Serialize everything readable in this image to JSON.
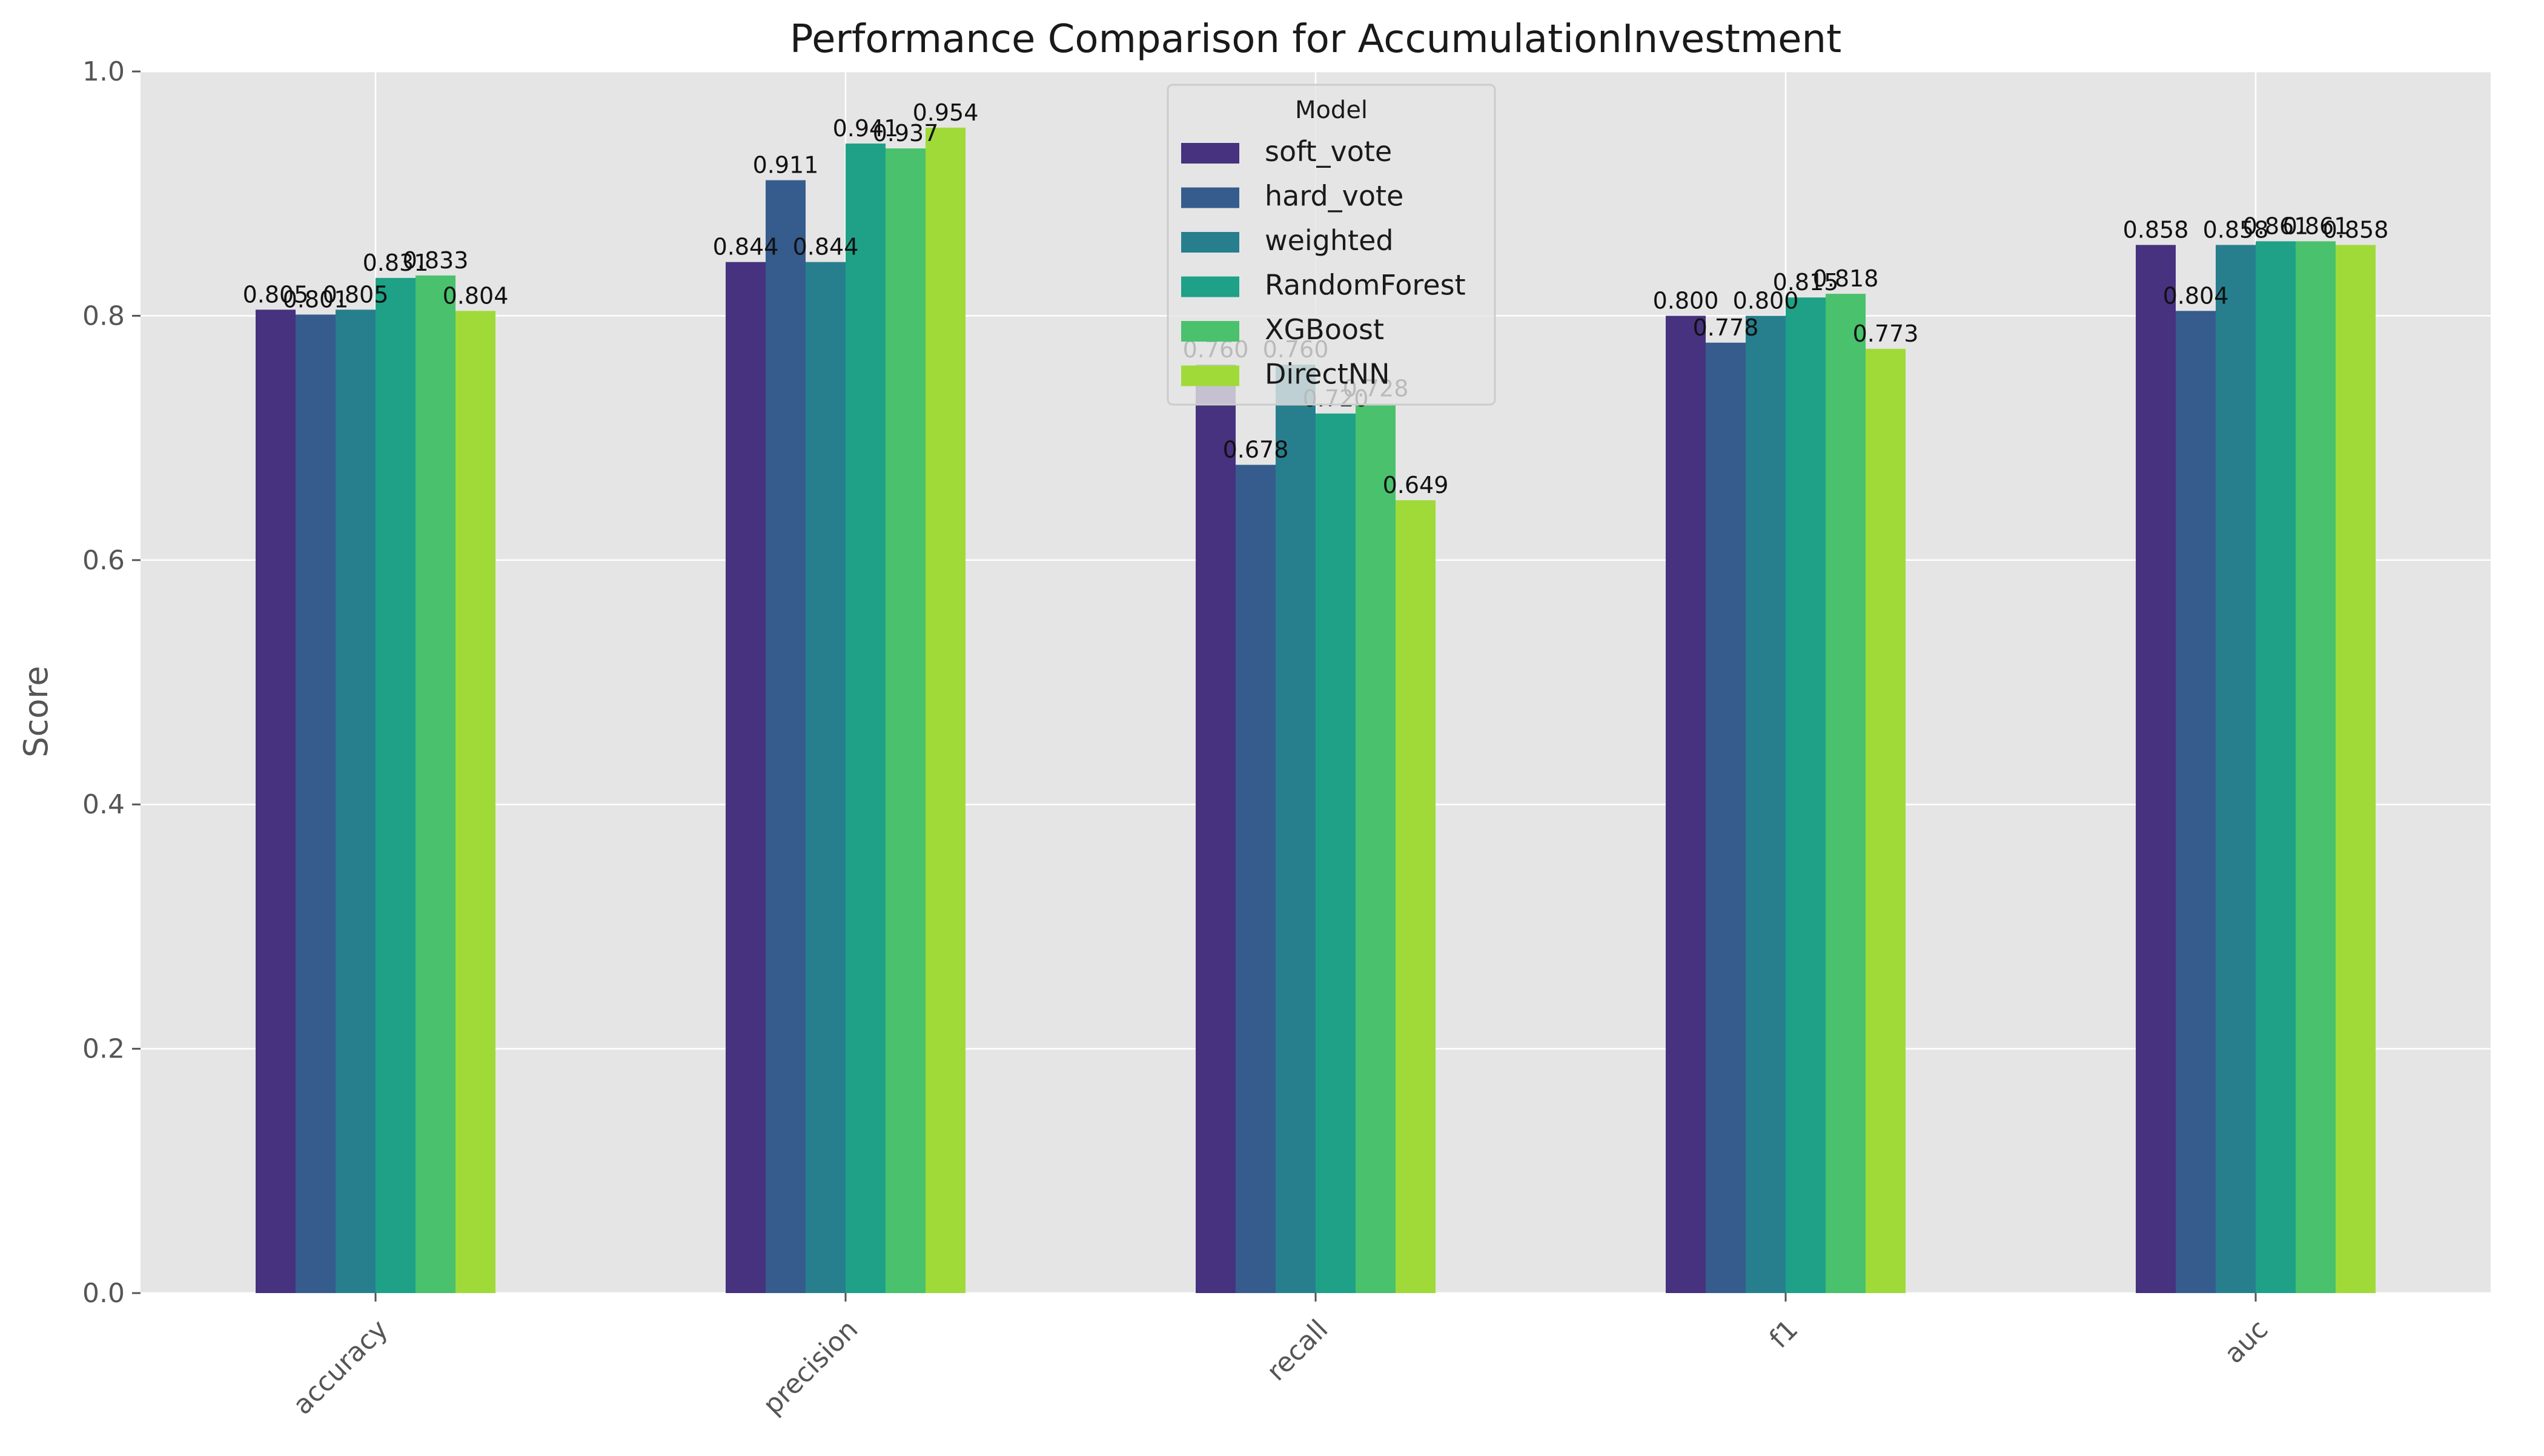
{
  "chart_data": {
    "type": "bar",
    "title": "Performance Comparison for AccumulationInvestment",
    "xlabel": "",
    "ylabel": "Score",
    "ylim": [
      0,
      1.0
    ],
    "yticks": [
      "0.0",
      "0.2",
      "0.4",
      "0.6",
      "0.8",
      "1.0"
    ],
    "grid": true,
    "legend": {
      "title": "Model",
      "placement": "top-center"
    },
    "categories": [
      "accuracy",
      "precision",
      "recall",
      "f1",
      "auc"
    ],
    "series": [
      {
        "name": "soft_vote",
        "color": "#46327e",
        "values": [
          0.805,
          0.844,
          0.76,
          0.8,
          0.858
        ],
        "labels": [
          "0.805",
          "0.844",
          "0.760",
          "0.800",
          "0.858"
        ]
      },
      {
        "name": "hard_vote",
        "color": "#365c8d",
        "values": [
          0.801,
          0.911,
          0.678,
          0.778,
          0.804
        ],
        "labels": [
          "0.801",
          "0.911",
          "0.678",
          "0.778",
          "0.804"
        ]
      },
      {
        "name": "weighted",
        "color": "#277f8e",
        "values": [
          0.805,
          0.844,
          0.76,
          0.8,
          0.858
        ],
        "labels": [
          "0.805",
          "0.844",
          "0.760",
          "0.800",
          "0.858"
        ]
      },
      {
        "name": "RandomForest",
        "color": "#1fa187",
        "values": [
          0.831,
          0.941,
          0.72,
          0.815,
          0.861
        ],
        "labels": [
          "0.831",
          "0.941",
          "0.720",
          "0.815",
          "0.861"
        ]
      },
      {
        "name": "XGBoost",
        "color": "#4ac16d",
        "values": [
          0.833,
          0.937,
          0.728,
          0.818,
          0.861
        ],
        "labels": [
          "0.833",
          "0.937",
          "0.728",
          "0.818",
          "0.861"
        ]
      },
      {
        "name": "DirectNN",
        "color": "#a0da39",
        "values": [
          0.804,
          0.954,
          0.649,
          0.773,
          0.858
        ],
        "labels": [
          "0.804",
          "0.954",
          "0.649",
          "0.773",
          "0.858"
        ]
      }
    ]
  }
}
